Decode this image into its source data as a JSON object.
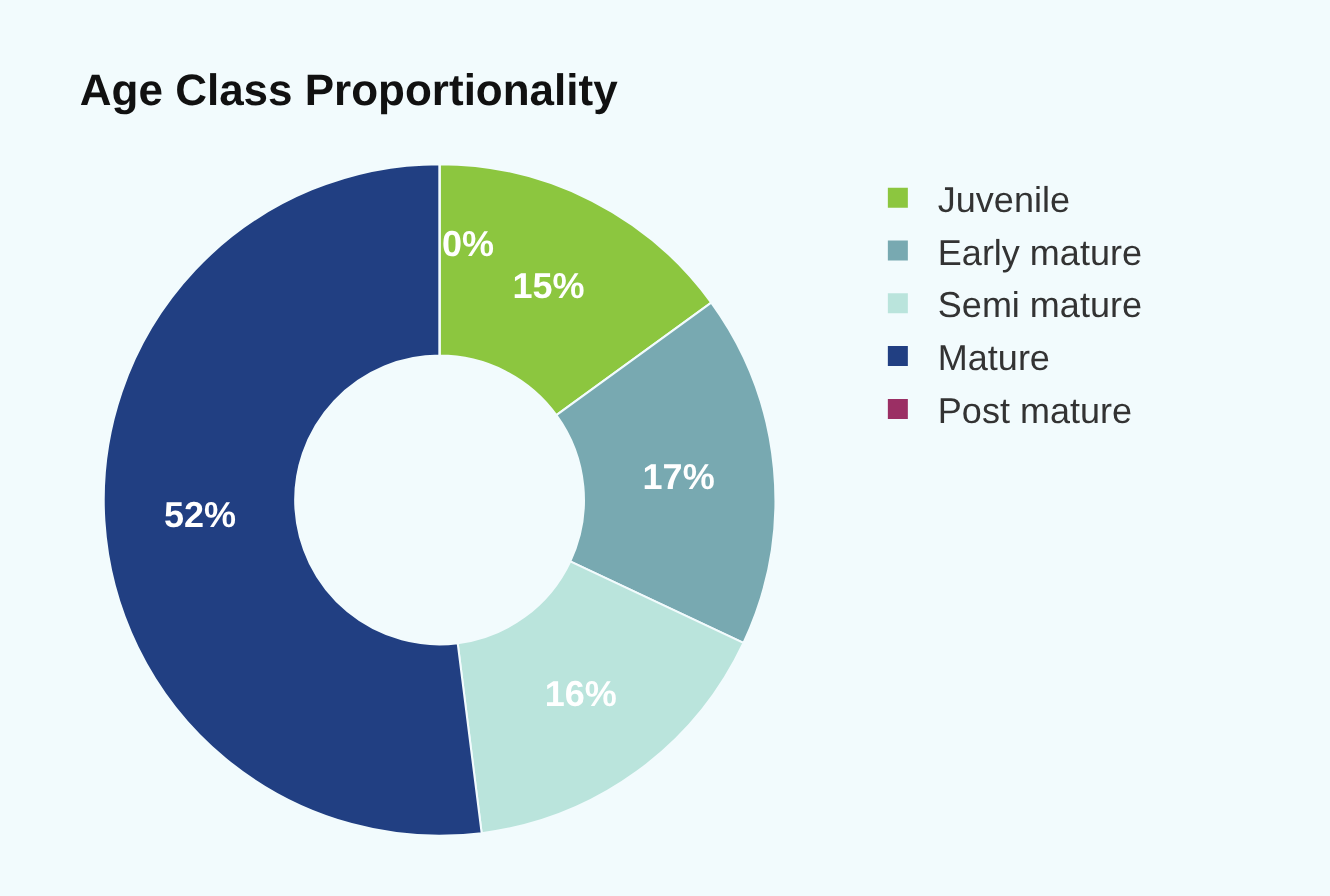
{
  "chart_data": {
    "type": "donut",
    "title": "Age Class Proportionality",
    "categories": [
      "Juvenile",
      "Early mature",
      "Semi mature",
      "Mature",
      "Post mature"
    ],
    "values": [
      15,
      17,
      16,
      52,
      0
    ],
    "colors": [
      "#8cc63f",
      "#78a9b1",
      "#bae4dc",
      "#213f82",
      "#9b2f64"
    ],
    "value_labels": [
      "15%",
      "17%",
      "16%",
      "52%",
      "0%"
    ],
    "legend": "right"
  }
}
